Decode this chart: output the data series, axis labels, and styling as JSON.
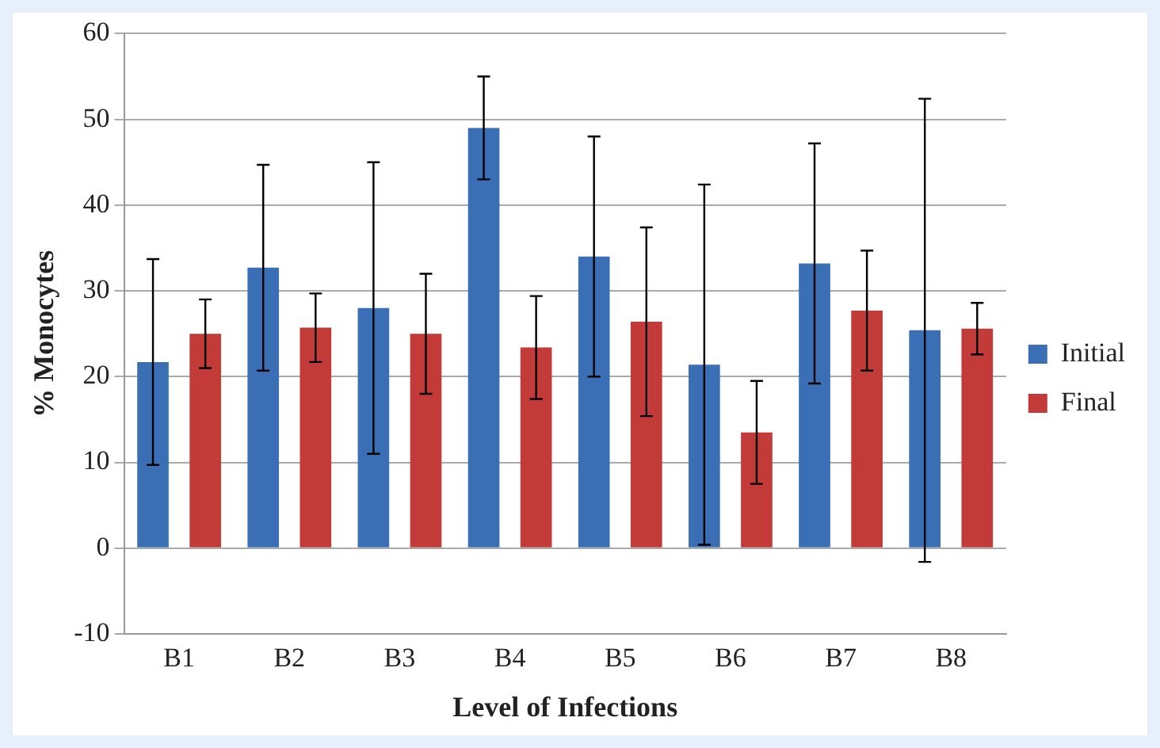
{
  "chart_data": {
    "type": "bar",
    "xlabel": "Level of Infections",
    "ylabel": "% Monocytes",
    "categories": [
      "B1",
      "B2",
      "B3",
      "B4",
      "B5",
      "B6",
      "B7",
      "B8"
    ],
    "series": [
      {
        "name": "Initial",
        "color": "#3a6fb5",
        "values": [
          21.7,
          32.7,
          28,
          49,
          34,
          21.4,
          33.2,
          25.4
        ],
        "errors": [
          12,
          12,
          17,
          6,
          14,
          21,
          14,
          27
        ]
      },
      {
        "name": "Final",
        "color": "#c23b39",
        "values": [
          25,
          25.7,
          25,
          23.4,
          26.4,
          13.5,
          27.7,
          25.6
        ],
        "errors": [
          4,
          4,
          7,
          6,
          11,
          6,
          7,
          3
        ]
      }
    ],
    "ylim": [
      -10,
      60
    ],
    "yticks": [
      -10,
      0,
      10,
      20,
      30,
      40,
      50,
      60
    ],
    "grid": "y",
    "legend": "right"
  }
}
